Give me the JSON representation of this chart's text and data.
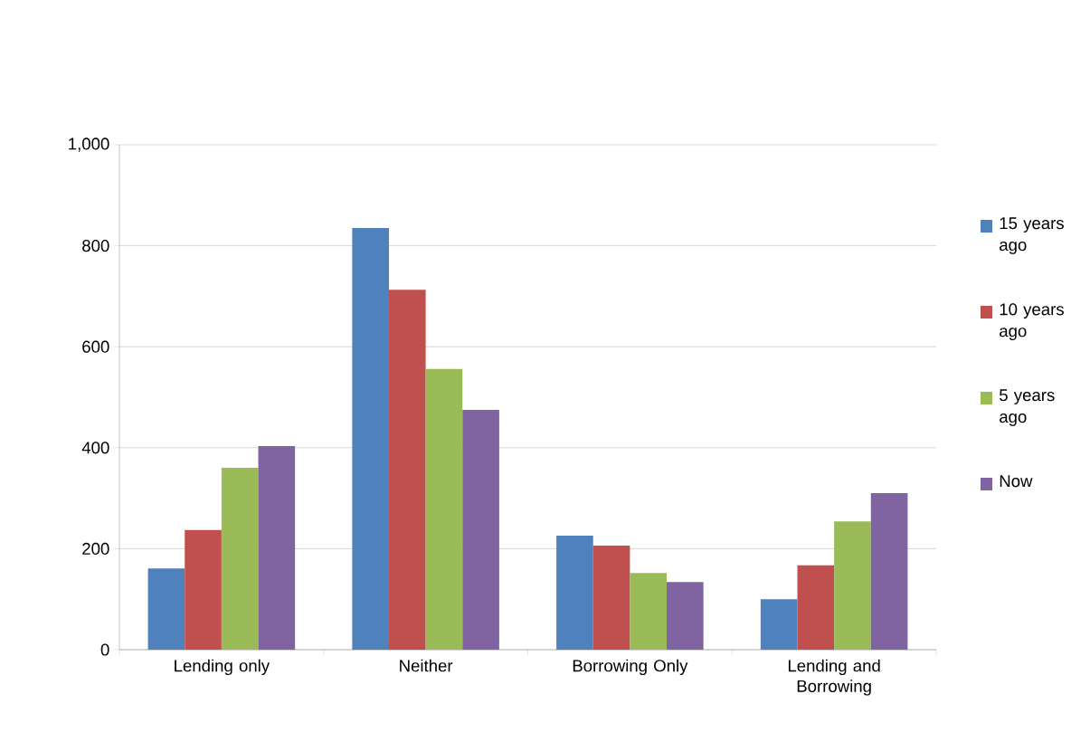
{
  "chart_data": {
    "type": "bar",
    "categories": [
      "Lending only",
      "Neither",
      "Borrowing Only",
      "Lending and Borrowing"
    ],
    "series": [
      {
        "name": "15 years ago",
        "color": "#4f81bd",
        "values": [
          161,
          835,
          226,
          100
        ]
      },
      {
        "name": "10 years ago",
        "color": "#c0504d",
        "values": [
          237,
          713,
          206,
          167
        ]
      },
      {
        "name": "5 years ago",
        "color": "#9bbb59",
        "values": [
          360,
          556,
          152,
          254
        ]
      },
      {
        "name": "Now",
        "color": "#8064a2",
        "values": [
          403,
          475,
          134,
          310
        ]
      }
    ],
    "ylim": [
      0,
      1000
    ],
    "yticks": [
      0,
      200,
      400,
      600,
      800,
      {
        "value": 1000,
        "label": "1,000"
      }
    ],
    "grid": "y",
    "legend": "right"
  }
}
